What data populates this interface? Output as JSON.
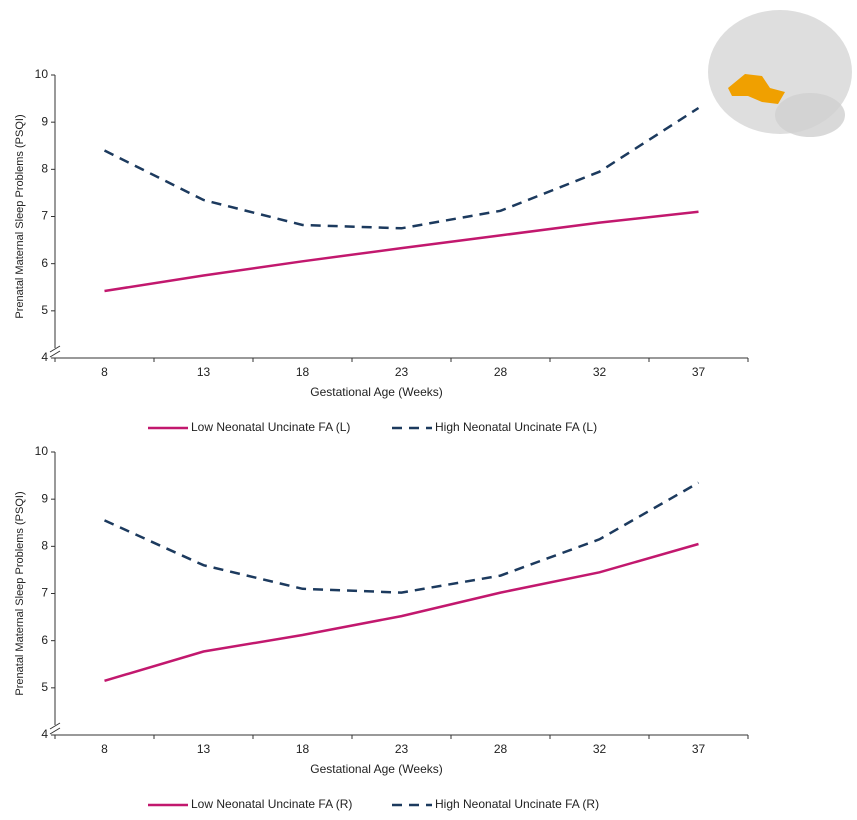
{
  "chart_data": [
    {
      "type": "line",
      "x_label": "Gestational Age (Weeks)",
      "y_label": "Prenatal Maternal Sleep Problems (PSQI)",
      "categories": [
        "8",
        "13",
        "18",
        "23",
        "28",
        "32",
        "37"
      ],
      "ylim": [
        4,
        10
      ],
      "yticks": [
        4,
        5,
        6,
        7,
        8,
        9,
        10
      ],
      "series": [
        {
          "name": "Low Neonatal Uncinate FA (L)",
          "color": "#c2186e",
          "dash": false,
          "values": [
            5.42,
            5.75,
            6.05,
            6.33,
            6.6,
            6.87,
            7.1
          ]
        },
        {
          "name": "High Neonatal Uncinate FA (L)",
          "color": "#1c3a5e",
          "dash": true,
          "values": [
            8.4,
            7.35,
            6.82,
            6.75,
            7.12,
            7.95,
            9.3
          ]
        }
      ]
    },
    {
      "type": "line",
      "x_label": "Gestational Age (Weeks)",
      "y_label": "Prenatal Maternal Sleep Problems (PSQI)",
      "categories": [
        "8",
        "13",
        "18",
        "23",
        "28",
        "32",
        "37"
      ],
      "ylim": [
        4,
        10
      ],
      "yticks": [
        4,
        5,
        6,
        7,
        8,
        9,
        10
      ],
      "series": [
        {
          "name": "Low Neonatal Uncinate FA (R)",
          "color": "#c2186e",
          "dash": false,
          "values": [
            5.15,
            5.77,
            6.12,
            6.52,
            7.02,
            7.45,
            8.05
          ]
        },
        {
          "name": "High Neonatal Uncinate FA (R)",
          "color": "#1c3a5e",
          "dash": true,
          "values": [
            8.55,
            7.6,
            7.1,
            7.02,
            7.38,
            8.15,
            9.35
          ]
        }
      ]
    }
  ]
}
